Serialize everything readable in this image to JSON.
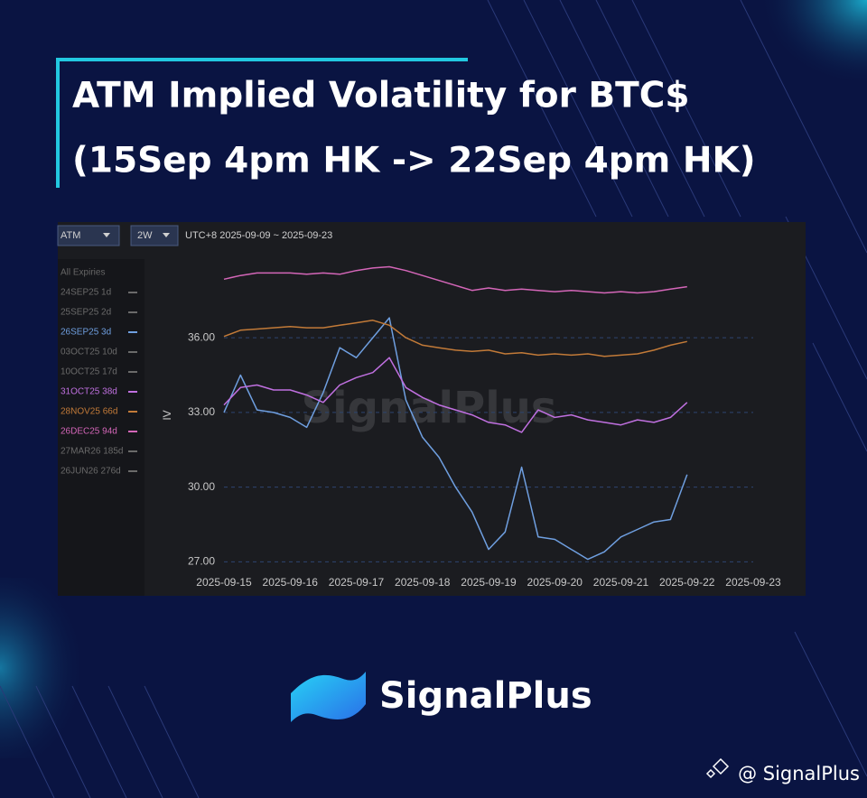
{
  "header": {
    "title": "ATM Implied Volatility for BTC$"
  },
  "toolbar": {
    "metric": "ATM",
    "range": "2W",
    "period": "UTC+8 2025-09-09 ~ 2025-09-23"
  },
  "watermark": "SignalPlus",
  "brand": {
    "logo": "SignalPlus",
    "handle": "@ SignalPlus"
  },
  "chart_data": {
    "type": "line",
    "subtitle": "(15Sep 4pm HK -> 22Sep 4pm HK)",
    "ylabel": "IV",
    "legend_title": "All Expiries",
    "grid": true,
    "x": [
      "2025-09-15 00:00",
      "2025-09-15 06:00",
      "2025-09-15 12:00",
      "2025-09-15 18:00",
      "2025-09-16 00:00",
      "2025-09-16 06:00",
      "2025-09-16 12:00",
      "2025-09-16 18:00",
      "2025-09-17 00:00",
      "2025-09-17 06:00",
      "2025-09-17 12:00",
      "2025-09-17 18:00",
      "2025-09-18 00:00",
      "2025-09-18 06:00",
      "2025-09-18 12:00",
      "2025-09-18 18:00",
      "2025-09-19 00:00",
      "2025-09-19 06:00",
      "2025-09-19 12:00",
      "2025-09-19 18:00",
      "2025-09-20 00:00",
      "2025-09-20 06:00",
      "2025-09-20 12:00",
      "2025-09-20 18:00",
      "2025-09-21 00:00",
      "2025-09-21 06:00",
      "2025-09-21 12:00",
      "2025-09-21 18:00",
      "2025-09-22 00:00"
    ],
    "xlim": [
      "2025-09-15",
      "2025-09-23"
    ],
    "xticks": [
      "2025-09-15",
      "2025-09-16",
      "2025-09-17",
      "2025-09-18",
      "2025-09-19",
      "2025-09-20",
      "2025-09-21",
      "2025-09-22",
      "2025-09-23"
    ],
    "ylim": [
      26.65,
      39.05
    ],
    "yticks": [
      {
        "value": 27,
        "label": "27.00"
      },
      {
        "value": 30,
        "label": "30.00"
      },
      {
        "value": 33,
        "label": "33.00"
      },
      {
        "value": 36,
        "label": "36.00"
      }
    ],
    "series": [
      {
        "name": "24SEP25 1d",
        "color": "#6a6a6a",
        "visible": false
      },
      {
        "name": "25SEP25 2d",
        "color": "#6a6a6a",
        "visible": false
      },
      {
        "name": "26SEP25 3d",
        "color": "#6f9fe0",
        "visible": true,
        "values": [
          33.0,
          34.5,
          33.1,
          33.0,
          32.8,
          32.4,
          33.8,
          35.6,
          35.2,
          36.0,
          36.8,
          33.5,
          32.0,
          31.2,
          30.0,
          29.0,
          27.5,
          28.2,
          30.8,
          28.0,
          27.9,
          27.5,
          27.1,
          27.4,
          28.0,
          28.3,
          28.6,
          28.7,
          30.5
        ]
      },
      {
        "name": "03OCT25 10d",
        "color": "#6a6a6a",
        "visible": false
      },
      {
        "name": "10OCT25 17d",
        "color": "#6a6a6a",
        "visible": false
      },
      {
        "name": "31OCT25 38d",
        "color": "#c070e0",
        "visible": true,
        "values": [
          33.3,
          34.0,
          34.1,
          33.9,
          33.9,
          33.7,
          33.4,
          34.1,
          34.4,
          34.6,
          35.2,
          34.0,
          33.6,
          33.3,
          33.1,
          32.9,
          32.6,
          32.5,
          32.2,
          33.1,
          32.8,
          32.9,
          32.7,
          32.6,
          32.5,
          32.7,
          32.6,
          32.8,
          33.4
        ]
      },
      {
        "name": "28NOV25 66d",
        "color": "#c27a38",
        "visible": true,
        "values": [
          36.05,
          36.3,
          36.35,
          36.4,
          36.45,
          36.4,
          36.4,
          36.5,
          36.6,
          36.7,
          36.5,
          36.0,
          35.7,
          35.6,
          35.5,
          35.45,
          35.5,
          35.35,
          35.4,
          35.3,
          35.35,
          35.3,
          35.35,
          35.25,
          35.3,
          35.35,
          35.5,
          35.7,
          35.85
        ]
      },
      {
        "name": "26DEC25 94d",
        "color": "#d466b8",
        "visible": true,
        "values": [
          38.35,
          38.5,
          38.6,
          38.6,
          38.6,
          38.55,
          38.6,
          38.55,
          38.7,
          38.8,
          38.85,
          38.7,
          38.5,
          38.3,
          38.1,
          37.9,
          38.0,
          37.9,
          37.95,
          37.9,
          37.85,
          37.9,
          37.85,
          37.8,
          37.85,
          37.8,
          37.85,
          37.95,
          38.05
        ]
      },
      {
        "name": "27MAR26 185d",
        "color": "#6a6a6a",
        "visible": false
      },
      {
        "name": "26JUN26 276d",
        "color": "#6a6a6a",
        "visible": false
      }
    ]
  }
}
